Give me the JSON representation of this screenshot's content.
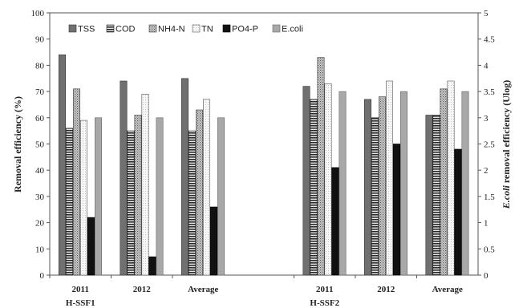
{
  "chart_data": {
    "type": "bar",
    "groups": [
      "H-SSF1",
      "H-SSF2"
    ],
    "categories": [
      "2011",
      "2012",
      "Average",
      "2011",
      "2012",
      "Average"
    ],
    "category_group": [
      0,
      0,
      0,
      1,
      1,
      1
    ],
    "ylabel_left": "Removal efficiency (%)",
    "ylabel_right_italic": "E.coli",
    "ylabel_right_rest": " removal efficiency (Ulog)",
    "ylim_left": [
      0,
      100
    ],
    "ylim_right": [
      0,
      5
    ],
    "yticks_left": [
      "0",
      "10",
      "20",
      "30",
      "40",
      "50",
      "60",
      "70",
      "80",
      "90",
      "100"
    ],
    "yticks_right": [
      "0",
      "0.5",
      "1",
      "1.5",
      "2",
      "2.5",
      "3",
      "3.5",
      "4",
      "4.5",
      "5"
    ],
    "legend_position": "top-left",
    "grid": false,
    "series": [
      {
        "name": "TSS",
        "axis": "left",
        "pattern": "gray",
        "values": [
          84,
          74,
          75,
          72,
          67,
          61
        ]
      },
      {
        "name": "COD",
        "axis": "left",
        "pattern": "hstripe",
        "values": [
          56,
          55,
          55,
          67,
          60,
          61
        ]
      },
      {
        "name": "NH4-N",
        "axis": "left",
        "pattern": "dots",
        "values": [
          71,
          61,
          63,
          83,
          68,
          71
        ]
      },
      {
        "name": "TN",
        "axis": "left",
        "pattern": "light",
        "values": [
          59,
          69,
          67,
          73,
          74,
          74
        ]
      },
      {
        "name": "PO4-P",
        "axis": "left",
        "pattern": "black",
        "values": [
          22,
          7,
          26,
          41,
          50,
          48
        ]
      },
      {
        "name": "E.coli",
        "axis": "right",
        "pattern": "lightgray",
        "values": [
          3.0,
          3.0,
          3.0,
          3.5,
          3.5,
          3.5
        ]
      }
    ]
  }
}
